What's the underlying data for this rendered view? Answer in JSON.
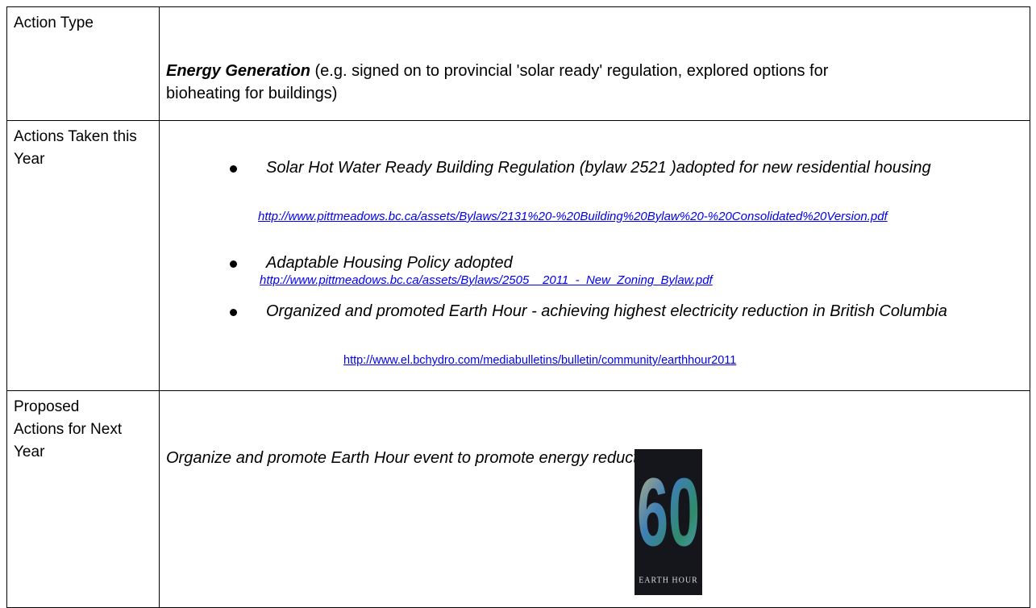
{
  "table": {
    "rows": [
      {
        "label": "Action Type",
        "heading": "Energy Generation",
        "text": " (e.g. signed on to provincial 'solar ready' regulation, explored options for bioheating for buildings)"
      },
      {
        "label": "Actions Taken this Year",
        "items": [
          {
            "text": "Solar Hot Water Ready Building Regulation (bylaw 2521 )adopted for new residential housing",
            "link": "http://www.pittmeadows.bc.ca/assets/Bylaws/2131%20-%20Building%20Bylaw%20-%20Consolidated%20Version.pdf"
          },
          {
            "text": "Adaptable Housing Policy adopted",
            "link": "http://www.pittmeadows.bc.ca/assets/Bylaws/2505__2011_-_New_Zoning_Bylaw.pdf"
          },
          {
            "text": "Organized and promoted Earth Hour - achieving highest electricity reduction in British Columbia",
            "link": "http://www.el.bchydro.com/mediabulletins/bulletin/community/earthhour2011"
          }
        ]
      },
      {
        "label": "Proposed Actions for Next Year",
        "text": "Organize and promote Earth Hour event to promote energy reduction.",
        "image": {
          "number": "60",
          "caption": "EARTH HOUR"
        }
      }
    ]
  }
}
